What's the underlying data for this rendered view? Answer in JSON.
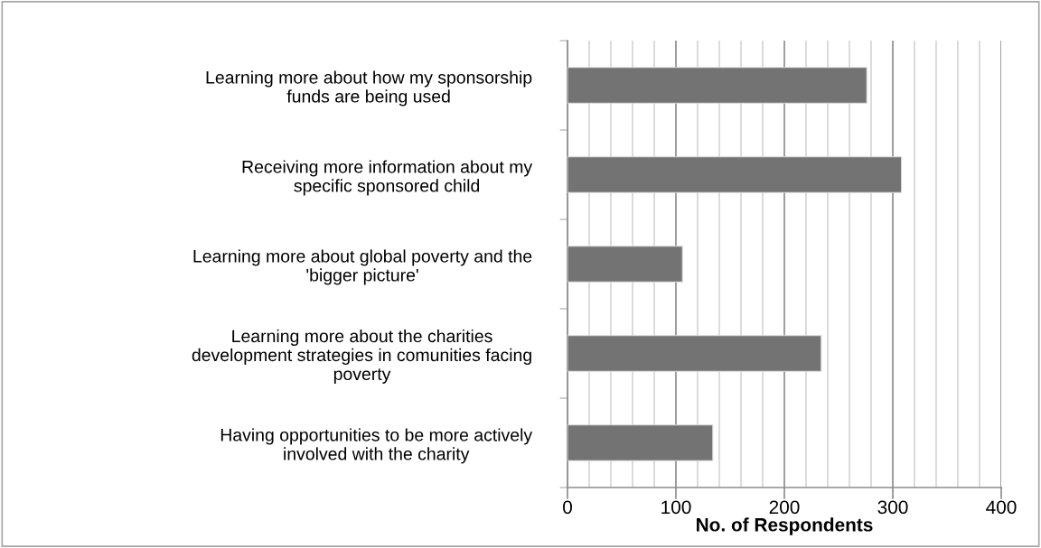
{
  "chart_data": {
    "type": "bar",
    "orientation": "horizontal",
    "xlabel": "No. of Respondents",
    "categories": [
      "Learning more about how my sponsorship funds are being used",
      "Receiving more information about my specific sponsored child",
      "Learning more about global poverty and the 'bigger picture'",
      "Learning more about the charities development strategies in comunities facing poverty",
      "Having opportunities to be more actively involved with the charity"
    ],
    "values": [
      276,
      308,
      106,
      234,
      134
    ],
    "color": "#737373",
    "xlim": [
      0,
      400
    ],
    "xticks": [
      0,
      {
        "value": 20,
        "label": null
      },
      {
        "value": 40,
        "label": null
      },
      {
        "value": 60,
        "label": null
      },
      {
        "value": 80,
        "label": null
      },
      100,
      {
        "value": 120,
        "label": null
      },
      {
        "value": 140,
        "label": null
      },
      {
        "value": 160,
        "label": null
      },
      {
        "value": 180,
        "label": null
      },
      200,
      {
        "value": 220,
        "label": null
      },
      {
        "value": 240,
        "label": null
      },
      {
        "value": 260,
        "label": null
      },
      {
        "value": 280,
        "label": null
      },
      300,
      {
        "value": 320,
        "label": null
      },
      {
        "value": 340,
        "label": null
      },
      {
        "value": 360,
        "label": null
      },
      {
        "value": 380,
        "label": null
      },
      400
    ],
    "grid": "x"
  }
}
